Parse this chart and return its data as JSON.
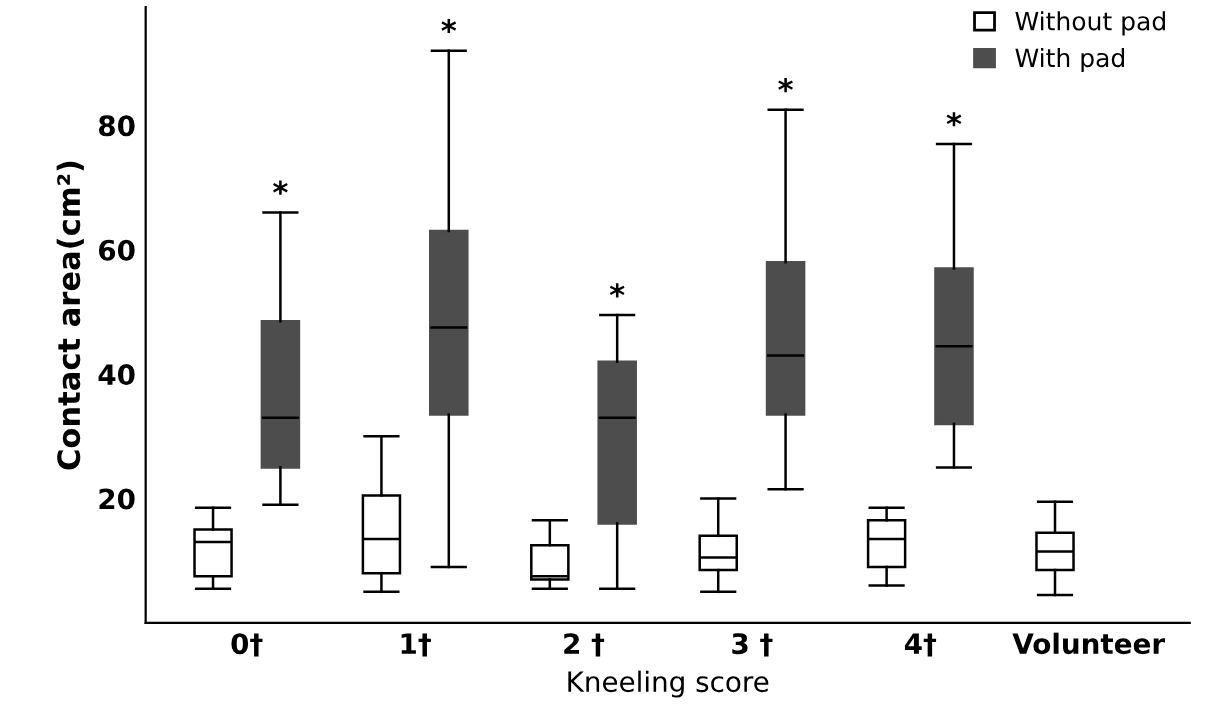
{
  "chart_data": {
    "type": "box",
    "xlabel": "Kneeling score",
    "ylabel": "Contact area(cm²)",
    "categories": [
      "0†",
      "1†",
      "2 †",
      "3 †",
      "4†",
      "Volunteer"
    ],
    "ylim": [
      0,
      99
    ],
    "yticks": [
      20,
      40,
      60,
      80
    ],
    "grid": false,
    "legend": "top right",
    "series": [
      {
        "name": "Without pad",
        "color": "#ffffff",
        "boxes": [
          {
            "low": 5.5,
            "q1": 7.5,
            "median": 13,
            "q3": 15,
            "high": 18.5
          },
          {
            "low": 5,
            "q1": 8,
            "median": 13.5,
            "q3": 20.5,
            "high": 30
          },
          {
            "low": 5.5,
            "q1": 7,
            "median": 7.5,
            "q3": 12.5,
            "high": 16.5
          },
          {
            "low": 5,
            "q1": 8.5,
            "median": 10.5,
            "q3": 14,
            "high": 20
          },
          {
            "low": 6,
            "q1": 9,
            "median": 13.5,
            "q3": 16.5,
            "high": 18.5
          },
          {
            "low": 4.5,
            "q1": 8.5,
            "median": 11.5,
            "q3": 14.5,
            "high": 19.5
          }
        ]
      },
      {
        "name": "With pad",
        "color": "#4d4d4d",
        "boxes": [
          {
            "low": 19,
            "q1": 25,
            "median": 33,
            "q3": 48.5,
            "high": 66
          },
          {
            "low": 9,
            "q1": 33.5,
            "median": 47.5,
            "q3": 63,
            "high": 92
          },
          {
            "low": 5.5,
            "q1": 16,
            "median": 33,
            "q3": 42,
            "high": 49.5
          },
          {
            "low": 21.5,
            "q1": 33.5,
            "median": 43,
            "q3": 58,
            "high": 82.5
          },
          {
            "low": 25,
            "q1": 32,
            "median": 44.5,
            "q3": 57,
            "high": 77
          },
          null
        ]
      }
    ],
    "annotations": [
      "*",
      "*",
      "*",
      "*",
      "*"
    ]
  }
}
